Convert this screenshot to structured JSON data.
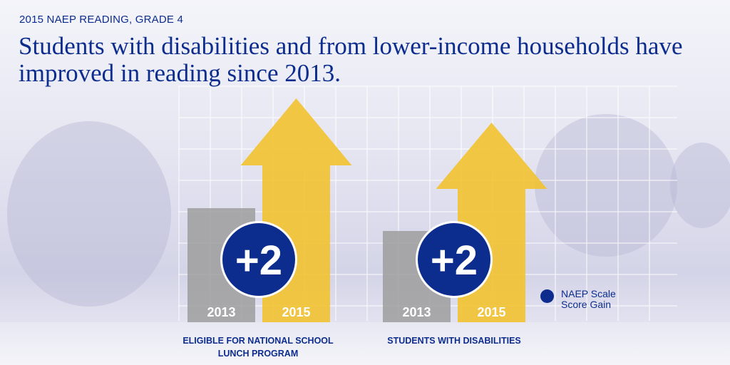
{
  "kicker": "2015 NAEP READING, GRADE 4",
  "title": "Students with disabilities and from lower-income households have improved in reading since 2013.",
  "legend": {
    "label": "NAEP Scale Score Gain",
    "color": "#0d2d8e"
  },
  "colors": {
    "year_2013": "#9e9e9e",
    "year_2015": "#f2c230",
    "gain_badge": "#0d2d8e"
  },
  "chart_data": {
    "type": "bar",
    "years": [
      "2013",
      "2015"
    ],
    "groups": [
      {
        "label": "ELIGIBLE FOR NATIONAL SCHOOL LUNCH PROGRAM",
        "gain": "+2"
      },
      {
        "label": "STUDENTS WITH DISABILITIES",
        "gain": "+2"
      }
    ],
    "legend": "NAEP Scale Score Gain"
  }
}
